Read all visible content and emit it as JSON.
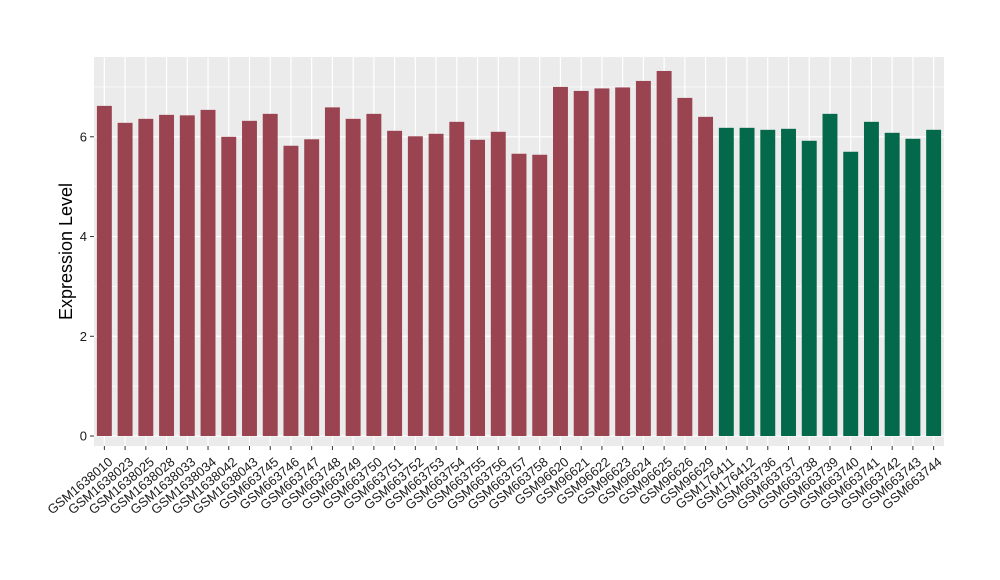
{
  "chart_data": {
    "type": "bar",
    "title": "",
    "xlabel": "",
    "ylabel": "Expression Level",
    "ylim": [
      -0.2,
      7.6
    ],
    "yticks": [
      0,
      2,
      4,
      6
    ],
    "grid": true,
    "legend": "none",
    "colors": {
      "group1": "#9b4451",
      "group2": "#04694a",
      "panel": "#ebebeb",
      "grid": "#ffffff"
    },
    "categories": [
      "GSM1638010",
      "GSM1638023",
      "GSM1638025",
      "GSM1638028",
      "GSM1638033",
      "GSM1638034",
      "GSM1638042",
      "GSM1638043",
      "GSM663745",
      "GSM663746",
      "GSM663747",
      "GSM663748",
      "GSM663749",
      "GSM663750",
      "GSM663751",
      "GSM663752",
      "GSM663753",
      "GSM663754",
      "GSM663755",
      "GSM663756",
      "GSM663757",
      "GSM663758",
      "GSM96620",
      "GSM96621",
      "GSM96622",
      "GSM96623",
      "GSM96624",
      "GSM96625",
      "GSM96626",
      "GSM96629",
      "GSM176411",
      "GSM176412",
      "GSM663736",
      "GSM663737",
      "GSM663738",
      "GSM663739",
      "GSM663740",
      "GSM663741",
      "GSM663742",
      "GSM663743",
      "GSM663744"
    ],
    "values": [
      6.62,
      6.28,
      6.36,
      6.44,
      6.43,
      6.54,
      6.0,
      6.32,
      6.46,
      5.82,
      5.95,
      6.59,
      6.36,
      6.46,
      6.12,
      6.01,
      6.06,
      6.3,
      5.94,
      6.1,
      5.66,
      5.64,
      7.0,
      6.92,
      6.97,
      6.99,
      7.12,
      7.32,
      6.78,
      6.4,
      6.18,
      6.18,
      6.14,
      6.16,
      5.92,
      6.46,
      5.7,
      6.3,
      6.08,
      5.96,
      6.14
    ],
    "groups": [
      1,
      1,
      1,
      1,
      1,
      1,
      1,
      1,
      1,
      1,
      1,
      1,
      1,
      1,
      1,
      1,
      1,
      1,
      1,
      1,
      1,
      1,
      1,
      1,
      1,
      1,
      1,
      1,
      1,
      1,
      2,
      2,
      2,
      2,
      2,
      2,
      2,
      2,
      2,
      2,
      2
    ]
  }
}
